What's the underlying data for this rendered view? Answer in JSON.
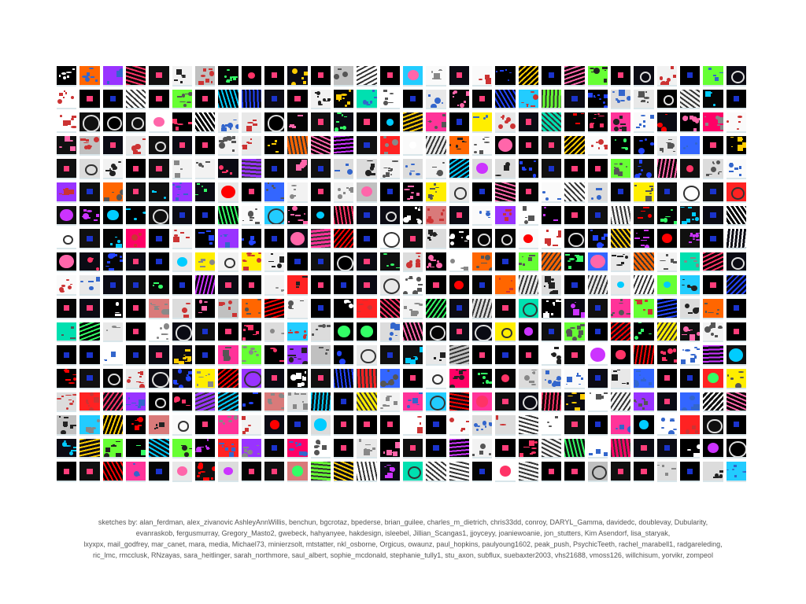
{
  "grid": {
    "rows": 18,
    "cols": 30
  },
  "credits": {
    "lines": [
      "sketches by: alan_ferdman, alex_zivanovic AshleyAnnWillis, benchun, bgcrotaz, bpederse, brian_guilee, charles_m_dietrich, chris33dd, conroy, DARYL_Gamma, davidedc, doublevay, Dubularity,",
      "evanraskob, fergusmurray, Gregory_Masto2, gwebeck, hahyanyee, hakdesign, isleebel, Jillian_Scangas1, jjoyceyy, joaniewoanie, jon_stutters, Kim Asendorf, lisa_staryak,",
      "lxyxpx, mail_godfrey, mar_canet, mara, media, Michael73, minierzsolt, mtstatter, nkl_osborne, Orgicus, owaunz, paul_hopkins, paulyoung1602, peak_push, PsychicTeeth, rachel_marabell1, radgareleding,",
      "ric_lmc, rmcclusk, RNzayas, sara_heitlinger, sarah_northmore, saul_albert, sophie_mcdonald, stephanie_tully1, stu_axon, subflux, suebaxter2003, vhs21688, vmoss126, willchisum, yorvikr, zompeol"
    ]
  }
}
